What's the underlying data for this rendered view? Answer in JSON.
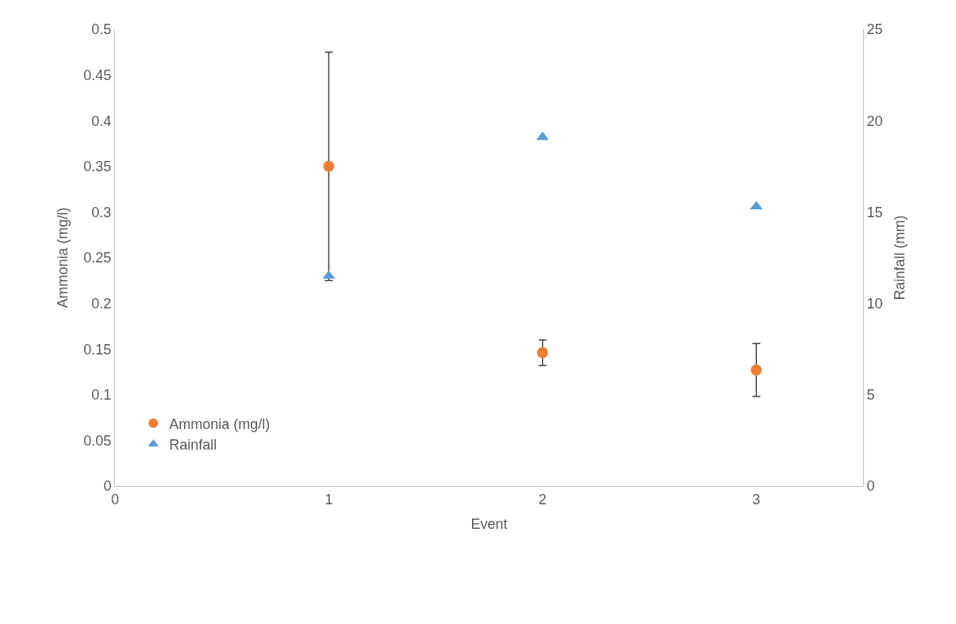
{
  "chart_data": {
    "type": "scatter",
    "xlabel": "Event",
    "ylabel": "Ammonia (mg/l)",
    "y2label": "Rainfall (mm)",
    "x": [
      1,
      2,
      3
    ],
    "series": [
      {
        "name": "Ammonia (mg/l)",
        "color": "#ed7d31",
        "values": [
          0.35,
          0.146,
          0.127
        ],
        "errors": [
          0.125,
          0.014,
          0.029
        ],
        "marker": "circle"
      },
      {
        "name": "Rainfall",
        "color": "#5b9bd5",
        "values": [
          11.5,
          19.1,
          15.3
        ],
        "axis": "y2",
        "marker": "triangle"
      }
    ],
    "xlim": [
      0,
      3.5
    ],
    "xticks": [
      0,
      1,
      2,
      3
    ],
    "ylim": [
      0,
      0.5
    ],
    "yticks": [
      0,
      0.05,
      0.1,
      0.15,
      0.2,
      0.25,
      0.3,
      0.35,
      0.4,
      0.45,
      0.5
    ],
    "y2lim": [
      0,
      25
    ],
    "y2ticks": [
      0,
      5,
      10,
      15,
      20,
      25
    ],
    "legend": "bottom left"
  }
}
